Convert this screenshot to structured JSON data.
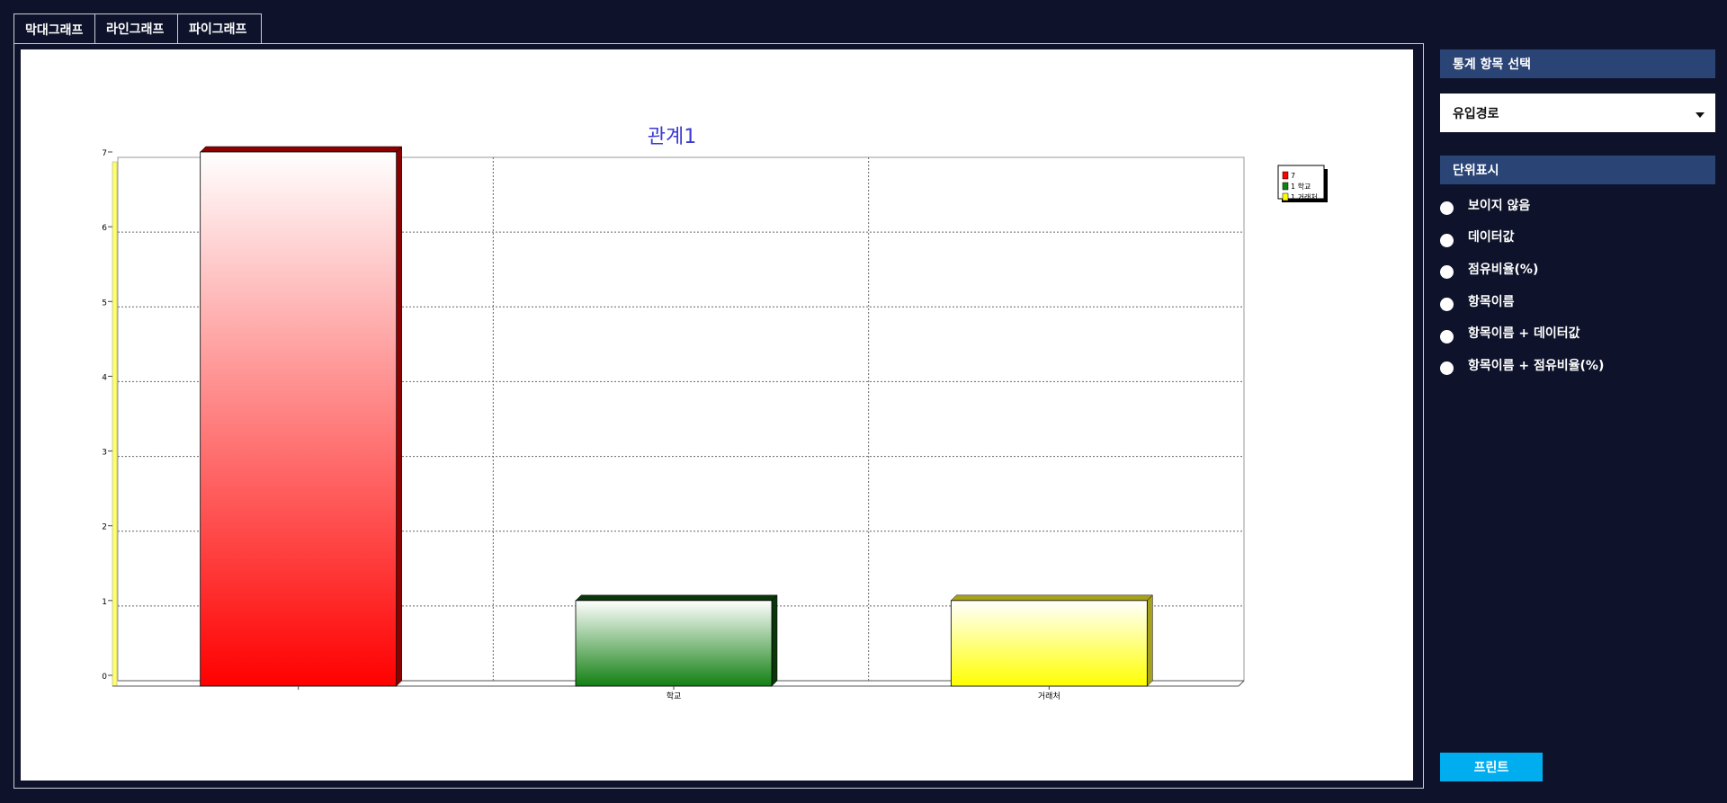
{
  "tabs": [
    {
      "label": "막대그래프",
      "active": true
    },
    {
      "label": "라인그래프",
      "active": false
    },
    {
      "label": "파이그래프",
      "active": false
    }
  ],
  "side": {
    "stat_header": "통계 항목 선택",
    "stat_select_value": "유입경로",
    "units_header": "단위표시",
    "unit_options": [
      "보이지 않음",
      "데이터값",
      "점유비율(%)",
      "항목이름",
      "항목이름 + 데이터값",
      "항목이름 + 점유비율(%)"
    ],
    "print_label": "프린트"
  },
  "colors": {
    "background": "#0e132b",
    "panel_header": "#2b4476",
    "print_button": "#00aef0",
    "title": "#3b3bd1"
  },
  "chart_data": {
    "type": "bar",
    "title": "관계1",
    "categories": [
      "",
      "학교",
      "거래처"
    ],
    "values": [
      7,
      1,
      1
    ],
    "bar_colors": [
      "#ff0000",
      "#128012",
      "#ffff00"
    ],
    "bar_side_colors": [
      "#8c0000",
      "#0b360b",
      "#a7a21c"
    ],
    "legend": [
      "7",
      "1 학교",
      "1 거래처"
    ],
    "ylim": [
      0,
      7
    ],
    "yticks": [
      "0",
      "1",
      "2",
      "3",
      "4",
      "5",
      "6",
      "7"
    ],
    "grid": true,
    "legend_position": "top-right"
  }
}
